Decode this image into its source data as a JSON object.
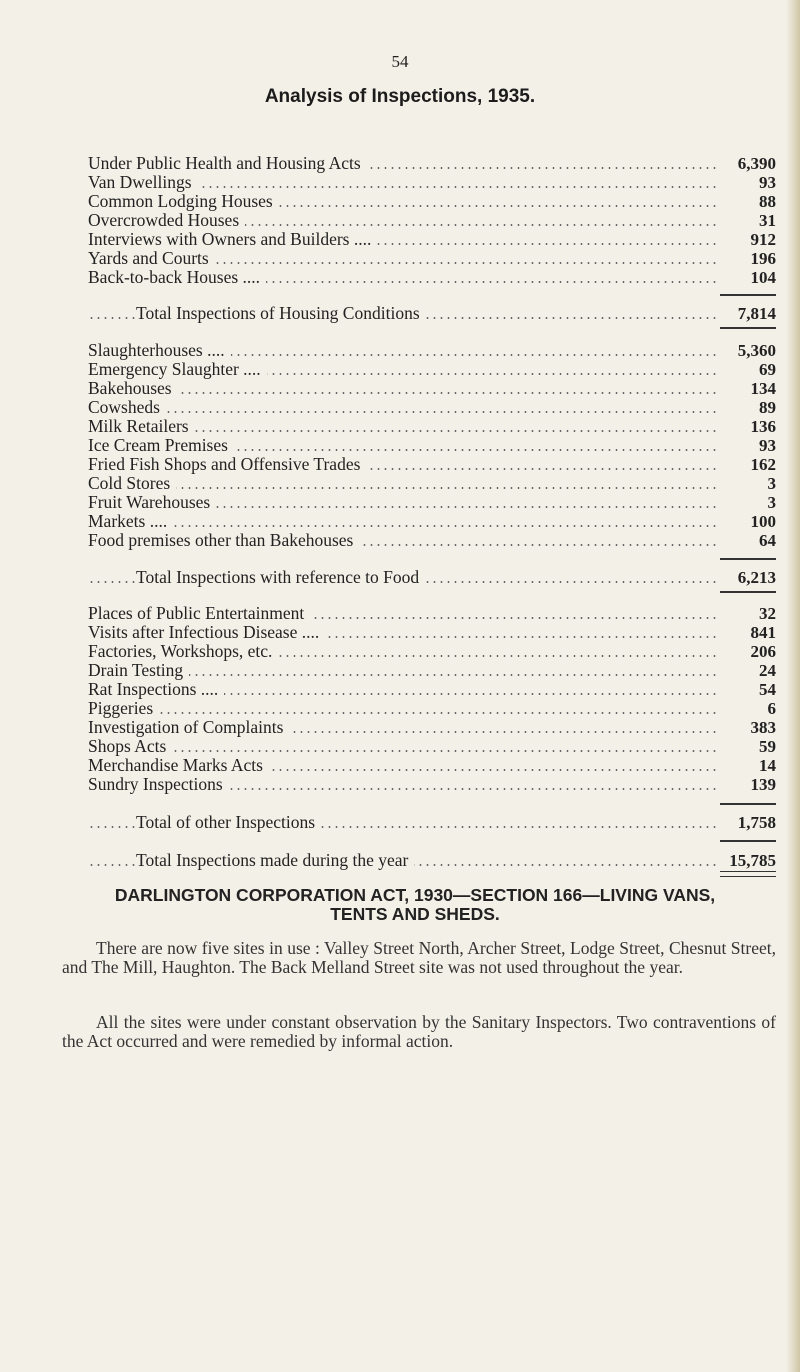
{
  "page_number": "54",
  "title": "Analysis of Inspections, 1935.",
  "sections": [
    {
      "items": [
        {
          "label": "Under Public Health and Housing Acts",
          "value": "6,390"
        },
        {
          "label": "Van Dwellings",
          "value": "93"
        },
        {
          "label": "Common Lodging Houses",
          "value": "88"
        },
        {
          "label": "Overcrowded Houses",
          "value": "31"
        },
        {
          "label": "Interviews with Owners and Builders ....",
          "value": "912"
        },
        {
          "label": "Yards and Courts",
          "value": "196"
        },
        {
          "label": "Back-to-back Houses ....",
          "value": "104"
        }
      ],
      "total": {
        "label": "Total Inspections of Housing Conditions",
        "value": "7,814"
      }
    },
    {
      "items": [
        {
          "label": "Slaughterhouses ....",
          "value": "5,360"
        },
        {
          "label": "Emergency Slaughter ....",
          "value": "69"
        },
        {
          "label": "Bakehouses",
          "value": "134"
        },
        {
          "label": "Cowsheds",
          "value": "89"
        },
        {
          "label": "Milk Retailers",
          "value": "136"
        },
        {
          "label": "Ice Cream Premises",
          "value": "93"
        },
        {
          "label": "Fried Fish Shops and Offensive Trades",
          "value": "162"
        },
        {
          "label": "Cold Stores",
          "value": "3"
        },
        {
          "label": "Fruit Warehouses",
          "value": "3"
        },
        {
          "label": "Markets ....",
          "value": "100"
        },
        {
          "label": "Food premises other than Bakehouses",
          "value": "64"
        }
      ],
      "total": {
        "label": "Total Inspections with reference to Food",
        "value": "6,213"
      }
    },
    {
      "items": [
        {
          "label": "Places of Public Entertainment",
          "value": "32"
        },
        {
          "label": "Visits after Infectious Disease ....",
          "value": "841"
        },
        {
          "label": "Factories, Workshops, etc.",
          "value": "206"
        },
        {
          "label": "Drain Testing",
          "value": "24"
        },
        {
          "label": "Rat Inspections ....",
          "value": "54"
        },
        {
          "label": "Piggeries",
          "value": "6"
        },
        {
          "label": "Investigation of Complaints",
          "value": "383"
        },
        {
          "label": "Shops Acts",
          "value": "59"
        },
        {
          "label": "Merchandise Marks Acts",
          "value": "14"
        },
        {
          "label": "Sundry Inspections",
          "value": "139"
        }
      ],
      "total": {
        "label": "Total of other Inspections",
        "value": "1,758"
      }
    }
  ],
  "grand_total": {
    "label": "Total Inspections made during the year",
    "value": "15,785"
  },
  "heading2": {
    "line1": "DARLINGTON CORPORATION ACT, 1930—SECTION 166—LIVING VANS,",
    "line2": "TENTS AND SHEDS."
  },
  "paragraphs": [
    "There are now five sites in use : Valley Street North, Archer Street, Lodge Street, Chesnut Street, and The Mill, Haughton. The Back Melland Street site was not used throughout the year.",
    "All the sites were under constant observation by the Sanitary Inspectors. Two contraventions of the Act occurred and were remedied by informal action."
  ]
}
